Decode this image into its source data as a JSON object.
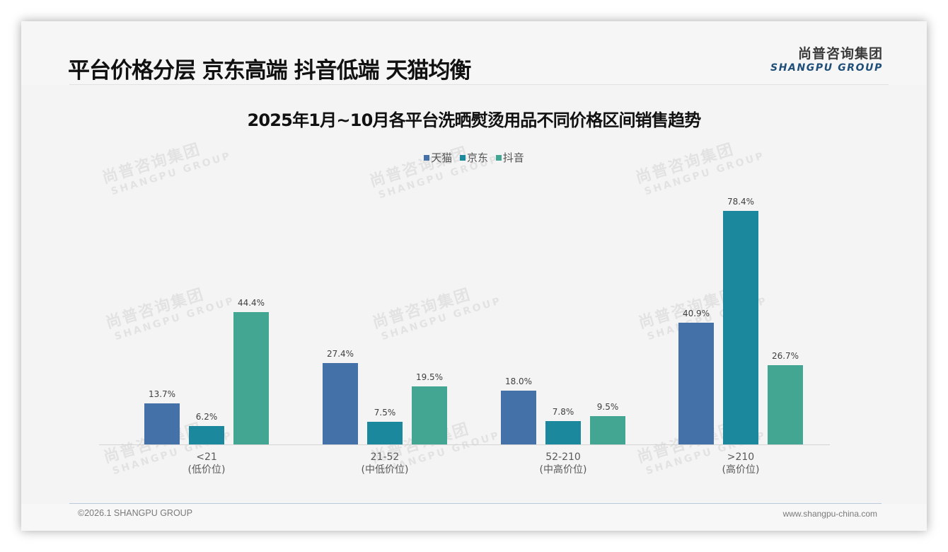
{
  "header": {
    "title": "平台价格分层 京东高端 抖音低端 天猫均衡",
    "logo_cn": "尚普咨询集团",
    "logo_en": "SHANGPU GROUP"
  },
  "watermark": {
    "cn": "尚普咨询集团",
    "en": "SHANGPU GROUP"
  },
  "footer": {
    "copyright": "©2026.1 SHANGPU GROUP",
    "website": "www.shangpu-china.com"
  },
  "colors": {
    "tmall": "#4472a8",
    "jd": "#1b889e",
    "douyin": "#43a692"
  },
  "chart_data": {
    "type": "bar",
    "title": "2025年1月~10月各平台洗晒熨烫用品不同价格区间销售趋势",
    "xlabel": "",
    "ylabel": "",
    "grid": false,
    "legend_position": "top",
    "categories": [
      "<21",
      "21-52",
      "52-210",
      ">210"
    ],
    "category_sublabels": [
      "(低价位)",
      "(中低价位)",
      "(中高价位)",
      "(高价位)"
    ],
    "series": [
      {
        "name": "天猫",
        "values": [
          13.7,
          27.4,
          18.0,
          40.9
        ],
        "labels": [
          "13.7%",
          "27.4%",
          "18.0%",
          "40.9%"
        ]
      },
      {
        "name": "京东",
        "values": [
          6.2,
          7.5,
          7.8,
          78.4
        ],
        "labels": [
          "6.2%",
          "7.5%",
          "7.8%",
          "78.4%"
        ]
      },
      {
        "name": "抖音",
        "values": [
          44.4,
          19.5,
          9.5,
          26.7
        ],
        "labels": [
          "44.4%",
          "19.5%",
          "9.5%",
          "26.7%"
        ]
      }
    ],
    "ylim": [
      0,
      80
    ],
    "unit": "%"
  }
}
